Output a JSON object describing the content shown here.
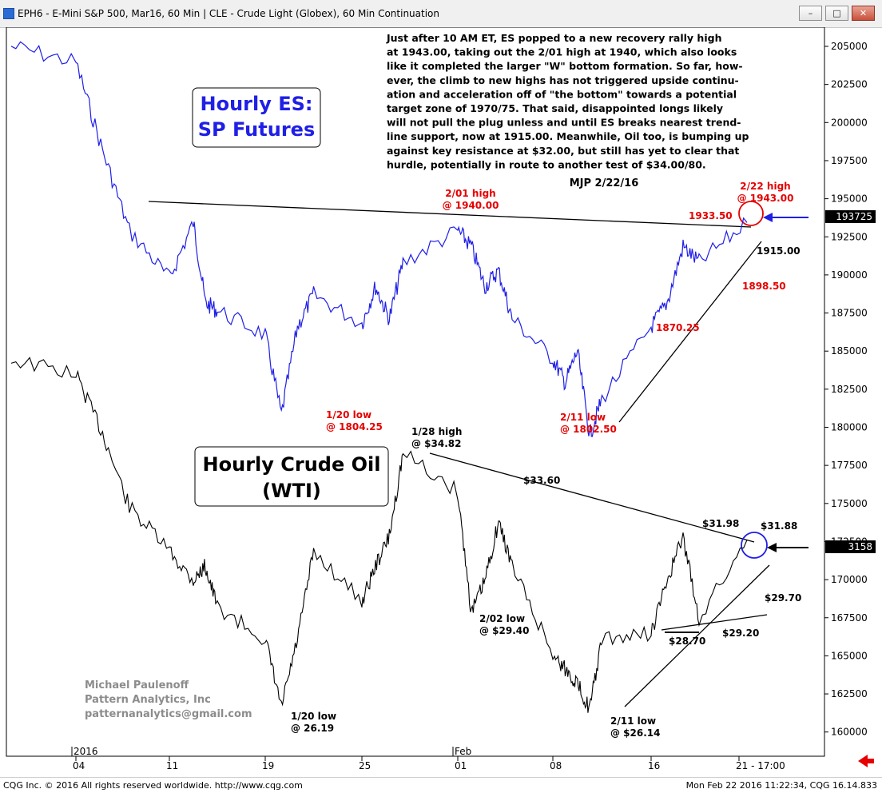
{
  "window": {
    "title": "EPH6 - E-Mini S&P 500, Mar16, 60 Min  |  CLE - Crude Light (Globex), 60 Min Continuation",
    "minimize": "–",
    "maximize": "□",
    "close": "✕"
  },
  "footer": {
    "left": "CQG Inc. © 2016 All rights reserved worldwide. http://www.cqg.com",
    "right": "Mon Feb 22 2016 11:22:34, CQG 16.14.833"
  },
  "colors": {
    "es_line": "#1f1fe6",
    "oil_line": "#000000",
    "annotation_red": "#e60000",
    "callout_blue": "#1f1fe6",
    "background": "#ffffff"
  },
  "chart_data": [
    {
      "type": "line",
      "title": "Hourly ES: SP Futures",
      "title_lines": [
        "Hourly ES:",
        "SP Futures"
      ],
      "series": [
        {
          "name": "Hourly ES: SP Futures",
          "color": "#1f1fe6",
          "x": [
            "2015-12-30",
            "2016-01-04",
            "2016-01-06",
            "2016-01-08",
            "2016-01-11",
            "2016-01-13",
            "2016-01-14",
            "2016-01-15",
            "2016-01-19",
            "2016-01-20",
            "2016-01-21",
            "2016-01-22",
            "2016-01-25",
            "2016-01-26",
            "2016-01-27",
            "2016-01-28",
            "2016-02-01",
            "2016-02-02",
            "2016-02-03",
            "2016-02-04",
            "2016-02-05",
            "2016-02-08",
            "2016-02-09",
            "2016-02-10",
            "2016-02-11",
            "2016-02-12",
            "2016-02-16",
            "2016-02-17",
            "2016-02-18",
            "2016-02-19",
            "2016-02-22"
          ],
          "values": [
            2050,
            2040,
            1985,
            1935,
            1905,
            1940,
            1890,
            1885,
            1870,
            1820,
            1875,
            1895,
            1877,
            1900,
            1880,
            1915,
            1935,
            1925,
            1900,
            1910,
            1880,
            1855,
            1840,
            1860,
            1807,
            1830,
            1875,
            1890,
            1925,
            1915,
            1940
          ]
        }
      ],
      "y_ticks": [
        "205000",
        "202500",
        "200000",
        "197500",
        "195000",
        "192500",
        "190000",
        "187500",
        "185000",
        "182500",
        "180000",
        "177500",
        "175000",
        "172500",
        "170000",
        "167500",
        "165000",
        "162500",
        "160000"
      ],
      "last_value": "193725",
      "ylim": [
        1600,
        2060
      ],
      "annotations": [
        {
          "text": "2/01 high @ 1940.00",
          "lines": [
            "2/01 high",
            "@ 1940.00"
          ],
          "color": "#e60000"
        },
        {
          "text": "2/22 high @ 1943.00",
          "lines": [
            "2/22 high",
            "@ 1943.00"
          ],
          "color": "#e60000"
        },
        {
          "text": "1933.50",
          "lines": [
            "1933.50"
          ],
          "color": "#e60000"
        },
        {
          "text": "1915.00",
          "lines": [
            "1915.00"
          ],
          "color": "#000000"
        },
        {
          "text": "1898.50",
          "lines": [
            "1898.50"
          ],
          "color": "#e60000"
        },
        {
          "text": "1870.25",
          "lines": [
            "1870.25"
          ],
          "color": "#e60000"
        },
        {
          "text": "1/20 low @ 1804.25",
          "lines": [
            "1/20 low",
            "@ 1804.25"
          ],
          "color": "#e60000"
        },
        {
          "text": "2/11 low @ 1802.50",
          "lines": [
            "2/11 low",
            "@ 1802.50"
          ],
          "color": "#e60000"
        }
      ]
    },
    {
      "type": "line",
      "title": "Hourly Crude Oil (WTI)",
      "title_lines": [
        "Hourly Crude Oil",
        "(WTI)"
      ],
      "series": [
        {
          "name": "Hourly Crude Oil (WTI)",
          "color": "#000000",
          "x": [
            "2015-12-30",
            "2016-01-04",
            "2016-01-06",
            "2016-01-08",
            "2016-01-11",
            "2016-01-13",
            "2016-01-14",
            "2016-01-15",
            "2016-01-19",
            "2016-01-20",
            "2016-01-21",
            "2016-01-22",
            "2016-01-25",
            "2016-01-26",
            "2016-01-27",
            "2016-01-28",
            "2016-02-01",
            "2016-02-02",
            "2016-02-03",
            "2016-02-04",
            "2016-02-05",
            "2016-02-08",
            "2016-02-09",
            "2016-02-10",
            "2016-02-11",
            "2016-02-12",
            "2016-02-16",
            "2016-02-17",
            "2016-02-18",
            "2016-02-19",
            "2016-02-22"
          ],
          "values": [
            38.0,
            37.5,
            35.5,
            33.0,
            31.5,
            30.5,
            31.0,
            29.6,
            28.5,
            26.19,
            28.5,
            31.5,
            29.8,
            31.0,
            32.0,
            34.82,
            33.5,
            29.4,
            30.5,
            32.5,
            31.0,
            28.0,
            27.5,
            27.0,
            26.14,
            28.5,
            28.7,
            30.5,
            31.98,
            29.2,
            31.88
          ]
        }
      ],
      "annotations": [
        {
          "text": "1/28 high @ $34.82",
          "lines": [
            "1/28 high",
            "@ $34.82"
          ],
          "color": "#000000"
        },
        {
          "text": "$33.60",
          "lines": [
            "$33.60"
          ],
          "color": "#000000"
        },
        {
          "text": "$31.98",
          "lines": [
            "$31.98"
          ],
          "color": "#000000"
        },
        {
          "text": "$31.88",
          "lines": [
            "$31.88"
          ],
          "color": "#000000"
        },
        {
          "text": "$29.70",
          "lines": [
            "$29.70"
          ],
          "color": "#000000"
        },
        {
          "text": "$29.20",
          "lines": [
            "$29.20"
          ],
          "color": "#000000"
        },
        {
          "text": "$28.70",
          "lines": [
            "$28.70"
          ],
          "color": "#000000"
        },
        {
          "text": "2/02 low @ $29.40",
          "lines": [
            "2/02 low",
            "@ $29.40"
          ],
          "color": "#000000"
        },
        {
          "text": "1/20 low @ 26.19",
          "lines": [
            "1/20 low",
            "@ 26.19"
          ],
          "color": "#000000"
        },
        {
          "text": "2/11 low @ $26.14",
          "lines": [
            "2/11 low",
            "@ $26.14"
          ],
          "color": "#000000"
        }
      ],
      "last_value": "3158"
    }
  ],
  "x_axis": {
    "tick_labels": [
      "04",
      "11",
      "19",
      "25",
      "01",
      "08",
      "16",
      "21 - 17:00"
    ],
    "top_labels": [
      "2016",
      "Feb"
    ]
  },
  "commentary": {
    "lines": [
      "Just after 10 AM ET, ES popped to a new recovery rally high",
      "at 1943.00, taking out the 2/01 high at 1940, which also looks",
      "like it completed the larger \"W\" bottom formation. So far, how-",
      "ever, the climb to new highs has not triggered upside continu-",
      "ation and acceleration off of \"the bottom\" towards a potential",
      "target zone of 1970/75. That said, disappointed longs likely",
      "will not pull the plug unless and until ES breaks nearest trend-",
      "line support, now at 1915.00. Meanwhile, Oil too, is bumping up",
      "against key resistance at $32.00, but still has yet to clear that",
      "hurdle, potentially in route to another test of $34.00/80."
    ],
    "signature": "MJP 2/22/16"
  },
  "author": {
    "lines": [
      "Michael Paulenoff",
      "Pattern Analytics, Inc",
      "patternanalytics@gmail.com"
    ]
  }
}
